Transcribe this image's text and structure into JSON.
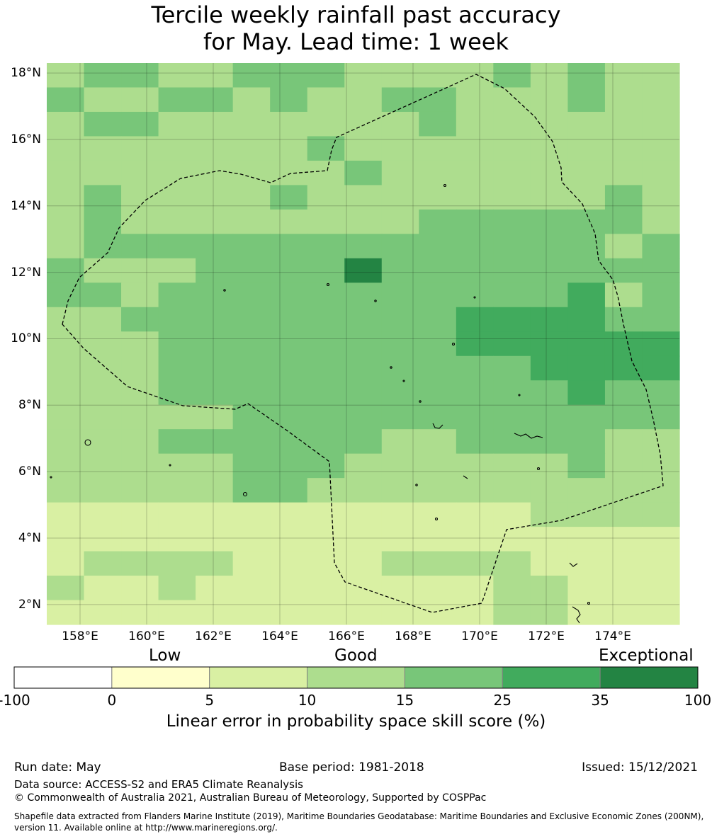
{
  "title_line1": "Tercile weekly rainfall past accuracy",
  "title_line2": "for May. Lead time: 1 week",
  "map": {
    "lat_labels": [
      "18°N",
      "16°N",
      "14°N",
      "12°N",
      "10°N",
      "8°N",
      "6°N",
      "4°N",
      "2°N"
    ],
    "lon_labels": [
      "158°E",
      "160°E",
      "162°E",
      "164°E",
      "166°E",
      "168°E",
      "170°E",
      "172°E",
      "174°E"
    ],
    "extent": {
      "lon": [
        157.0,
        176.0
      ],
      "lat": [
        1.4,
        18.3
      ]
    },
    "cell_size_deg": 0.833,
    "grid_note": "rows listed north to south; values are skill category index 0-6",
    "grid_rows": [
      "34433444333343433",
      "43344343344333433",
      "34433333334333333",
      "33333334333333333",
      "33333333433333333",
      "34333343333333343",
      "34333333334444443",
      "34444444444444434",
      "43334444644444444",
      "44344444444444534",
      "33444444444555544",
      "33344444444555555",
      "33344444444445555",
      "33344444444444544",
      "33333444444444444",
      "33344444433444433",
      "33333444333333433",
      "33333443333333333",
      "22222222222223333",
      "22222222222222222",
      "23333222233332222",
      "32232222222233222",
      "22222222222233222"
    ]
  },
  "colorbar": {
    "category_labels": [
      "Low",
      "Good",
      "Exceptional"
    ],
    "ticks": [
      "-100",
      "0",
      "5",
      "10",
      "15",
      "25",
      "35",
      "100"
    ],
    "colors": [
      "#ffffff",
      "#ffffcc",
      "#d9f0a3",
      "#addd8e",
      "#78c679",
      "#41ab5d",
      "#238443"
    ],
    "title": "Linear error in probability space skill score (%)"
  },
  "footer": {
    "run_date": "Run date: May",
    "base_period": "Base period: 1981-2018",
    "issued": "Issued: 15/12/2021",
    "data_source": "Data source: ACCESS-S2 and ERA5 Climate Reanalysis",
    "copyright": "© Commonwealth of Australia 2021, Australian Bureau of Meteorology, Supported by COSPPac",
    "shapefile": "Shapefile data extracted from Flanders Marine Institute (2019), Maritime Boundaries Geodatabase: Maritime Boundaries and Exclusive Economic Zones (200NM), version 11. Available online at http://www.marineregions.org/."
  }
}
